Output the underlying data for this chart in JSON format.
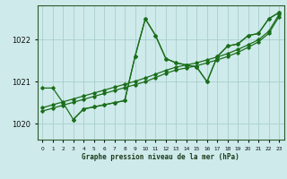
{
  "title": "Graphe pression niveau de la mer (hPa)",
  "xlabel_hours": [
    0,
    1,
    2,
    3,
    4,
    5,
    6,
    7,
    8,
    9,
    10,
    11,
    12,
    13,
    14,
    15,
    16,
    17,
    18,
    19,
    20,
    21,
    22,
    23
  ],
  "ylim": [
    1019.62,
    1022.82
  ],
  "yticks": [
    1020,
    1021,
    1022
  ],
  "xlim": [
    -0.5,
    23.5
  ],
  "bg_color": "#ceeaea",
  "grid_color": "#aacece",
  "line_color": "#1a6e1a",
  "series": [
    {
      "x": [
        0,
        1,
        2,
        3,
        4,
        5,
        6,
        7,
        8,
        9,
        10,
        11,
        12,
        13,
        14,
        15,
        16,
        17,
        18,
        19,
        20,
        21,
        22,
        23
      ],
      "y": [
        1020.85,
        1020.85,
        1020.5,
        1020.1,
        1020.35,
        1020.4,
        1020.45,
        1020.5,
        1020.55,
        1021.6,
        1022.5,
        1022.1,
        1021.55,
        1021.45,
        1021.4,
        1021.35,
        1021.0,
        1021.6,
        1021.85,
        1021.9,
        1022.1,
        1022.15,
        1022.5,
        1022.65
      ]
    },
    {
      "x": [
        0,
        1,
        2,
        3,
        4,
        5,
        6,
        7,
        8,
        9,
        10,
        11,
        12,
        13,
        14,
        15,
        16,
        17,
        18,
        19,
        20,
        21,
        22,
        23
      ],
      "y": [
        1020.3,
        1020.37,
        1020.44,
        1020.51,
        1020.58,
        1020.65,
        1020.72,
        1020.79,
        1020.86,
        1020.93,
        1021.0,
        1021.1,
        1021.2,
        1021.28,
        1021.33,
        1021.38,
        1021.45,
        1021.52,
        1021.6,
        1021.7,
        1021.82,
        1021.95,
        1022.15,
        1022.55
      ]
    },
    {
      "x": [
        0,
        1,
        2,
        3,
        4,
        5,
        6,
        7,
        8,
        9,
        10,
        11,
        12,
        13,
        14,
        15,
        16,
        17,
        18,
        19,
        20,
        21,
        22,
        23
      ],
      "y": [
        1020.38,
        1020.45,
        1020.52,
        1020.59,
        1020.66,
        1020.73,
        1020.8,
        1020.87,
        1020.94,
        1021.01,
        1021.09,
        1021.18,
        1021.27,
        1021.35,
        1021.4,
        1021.45,
        1021.52,
        1021.59,
        1021.67,
        1021.77,
        1021.88,
        1022.0,
        1022.2,
        1022.6
      ]
    },
    {
      "x": [
        3,
        4,
        5,
        6,
        7,
        8,
        9,
        10,
        11,
        12,
        13,
        14,
        15,
        16,
        17,
        18,
        19,
        20,
        21,
        22,
        23
      ],
      "y": [
        1020.1,
        1020.35,
        1020.4,
        1020.45,
        1020.5,
        1020.55,
        1021.6,
        1022.5,
        1022.1,
        1021.55,
        1021.45,
        1021.4,
        1021.35,
        1021.0,
        1021.6,
        1021.85,
        1021.9,
        1022.1,
        1022.15,
        1022.5,
        1022.65
      ]
    }
  ]
}
